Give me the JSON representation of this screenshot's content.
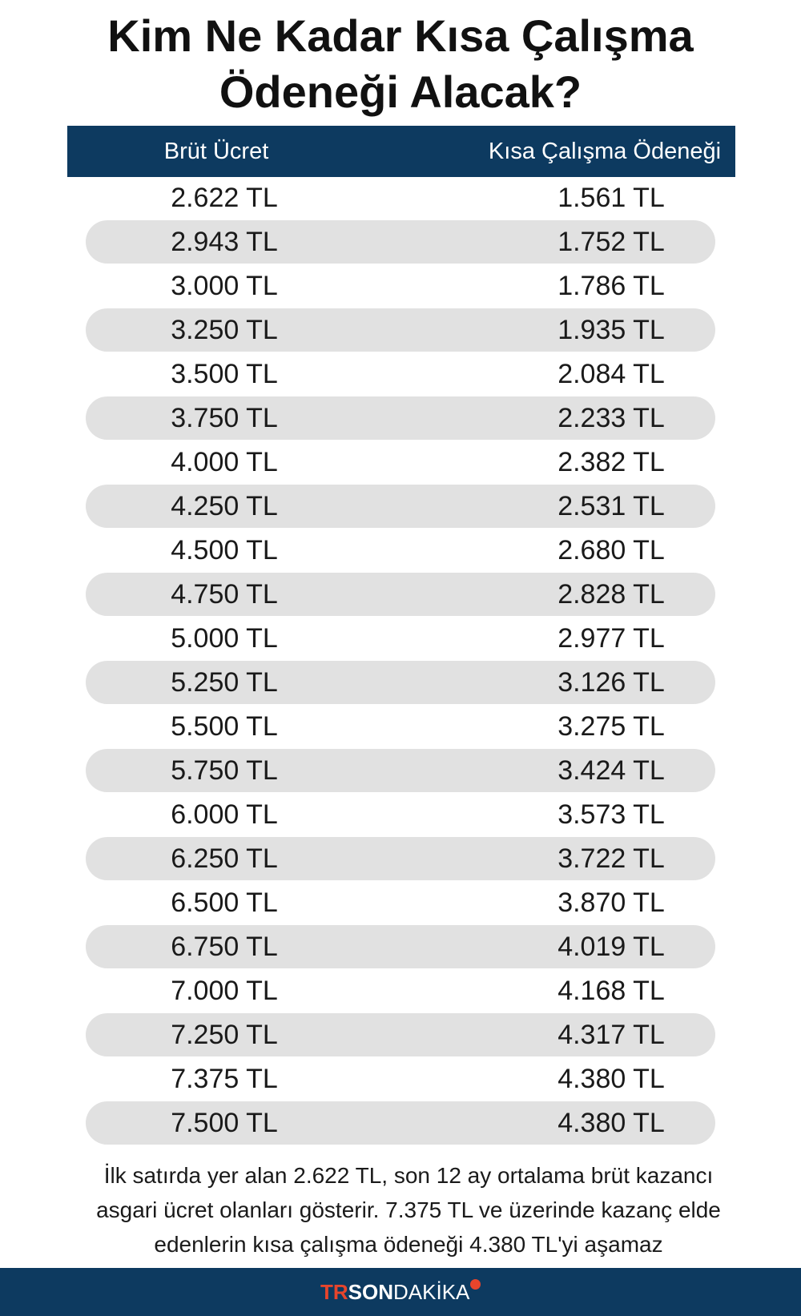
{
  "title": {
    "line1": "Kim Ne Kadar Kısa Çalışma",
    "line2": "Ödeneği Alacak?"
  },
  "table": {
    "headers": [
      "Brüt Ücret",
      "Kısa Çalışma Ödeneği"
    ],
    "rows": [
      [
        "2.622 TL",
        "1.561 TL"
      ],
      [
        "2.943 TL",
        "1.752 TL"
      ],
      [
        "3.000 TL",
        "1.786 TL"
      ],
      [
        "3.250 TL",
        "1.935 TL"
      ],
      [
        "3.500 TL",
        "2.084 TL"
      ],
      [
        "3.750 TL",
        "2.233 TL"
      ],
      [
        "4.000 TL",
        "2.382 TL"
      ],
      [
        "4.250 TL",
        "2.531 TL"
      ],
      [
        "4.500 TL",
        "2.680 TL"
      ],
      [
        "4.750 TL",
        "2.828 TL"
      ],
      [
        "5.000 TL",
        "2.977 TL"
      ],
      [
        "5.250 TL",
        "3.126 TL"
      ],
      [
        "5.500 TL",
        "3.275 TL"
      ],
      [
        "5.750 TL",
        "3.424 TL"
      ],
      [
        "6.000 TL",
        "3.573 TL"
      ],
      [
        "6.250 TL",
        "3.722 TL"
      ],
      [
        "6.500 TL",
        "3.870 TL"
      ],
      [
        "6.750 TL",
        "4.019 TL"
      ],
      [
        "7.000 TL",
        "4.168 TL"
      ],
      [
        "7.250 TL",
        "4.317 TL"
      ],
      [
        "7.375 TL",
        "4.380 TL"
      ],
      [
        "7.500 TL",
        "4.380 TL"
      ]
    ]
  },
  "note": {
    "line1": "İlk satırda yer alan 2.622 TL, son 12 ay ortalama brüt kazancı",
    "line2": "asgari ücret olanları gösterir. 7.375 TL ve üzerinde kazanç elde",
    "line3": "edenlerin kısa çalışma ödeneği 4.380 TL'yi aşamaz"
  },
  "footer": {
    "logo_tr": "TR",
    "logo_son": "SON",
    "logo_dakika": "DAKİKA"
  },
  "colors": {
    "header_bg": "#0d3a60",
    "stripe": "#e1e1e1",
    "logo_accent": "#e8452c"
  }
}
